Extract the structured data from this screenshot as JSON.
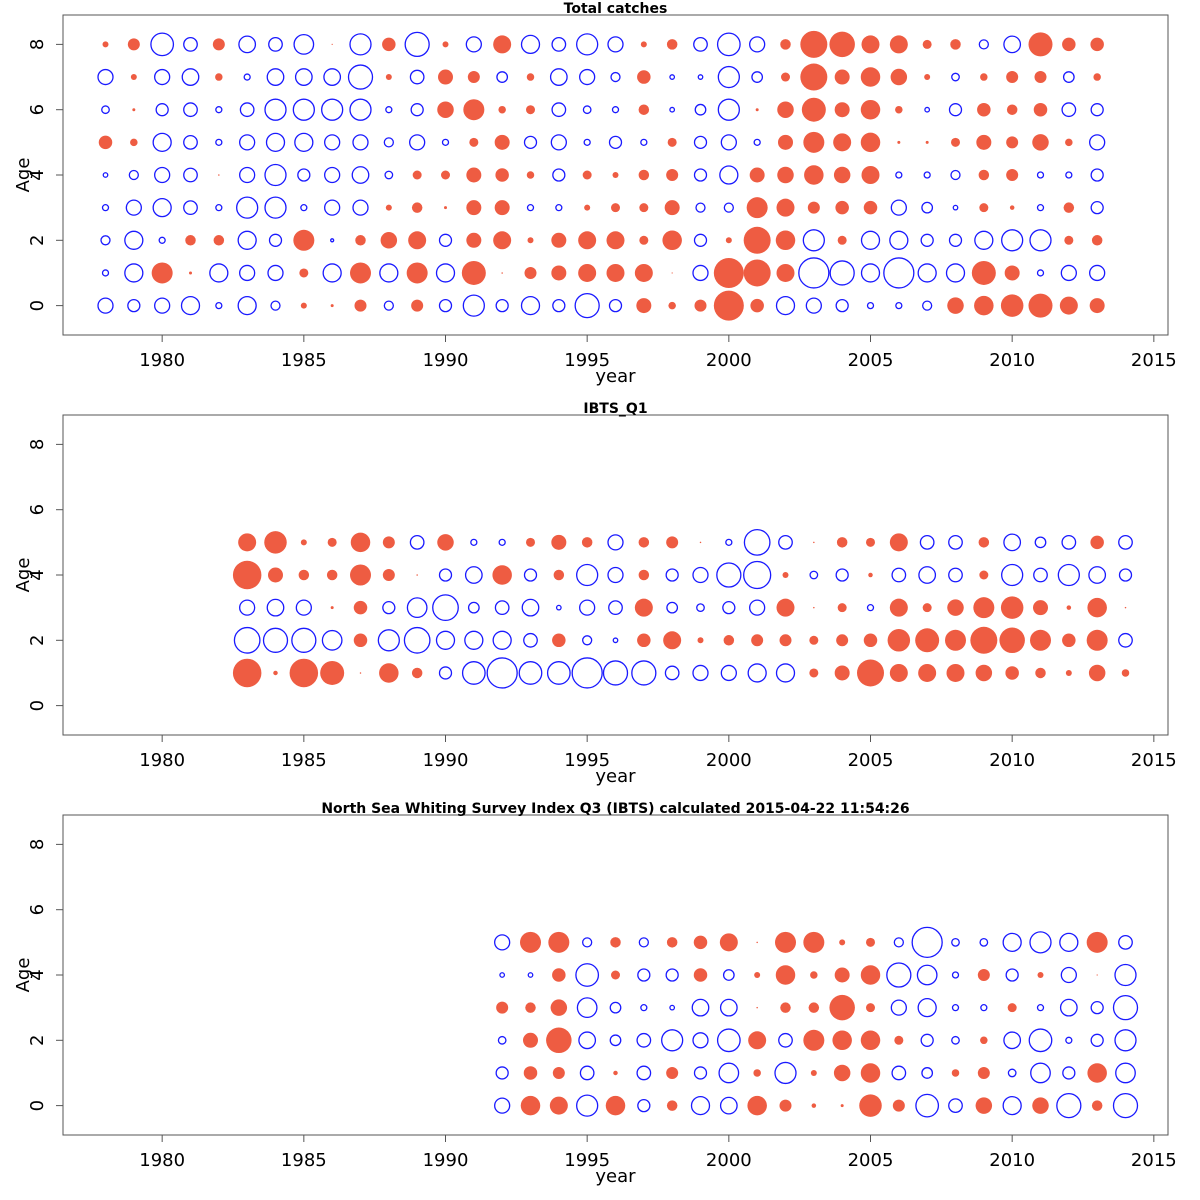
{
  "chart_data": [
    {
      "type": "scatter",
      "subtype": "bubble",
      "title": "Total catches",
      "xlabel": "year",
      "ylabel": "Age",
      "xlim": [
        1976.5,
        2015.5
      ],
      "ylim": [
        -0.9,
        8.9
      ],
      "xticks": [
        "1980",
        "1985",
        "1990",
        "1995",
        "2000",
        "2005",
        "2010",
        "2015"
      ],
      "yticks": [
        "0",
        "2",
        "4",
        "6",
        "8"
      ],
      "encoding": "signed residual; positive = filled red, negative = open blue; magnitude proportional to bubble radius",
      "years": [
        1978,
        1979,
        1980,
        1981,
        1982,
        1983,
        1984,
        1985,
        1986,
        1987,
        1988,
        1989,
        1990,
        1991,
        1992,
        1993,
        1994,
        1995,
        1996,
        1997,
        1998,
        1999,
        2000,
        2001,
        2002,
        2003,
        2004,
        2005,
        2006,
        2007,
        2008,
        2009,
        2010,
        2011,
        2012,
        2013
      ],
      "ages": [
        0,
        1,
        2,
        3,
        4,
        5,
        6,
        7,
        8
      ],
      "series": [
        {
          "name": "age 0",
          "values": [
            -0.5,
            -0.4,
            -0.5,
            -0.6,
            -0.2,
            -0.6,
            -0.3,
            0.2,
            0.1,
            0.4,
            -0.3,
            0.4,
            -0.4,
            -0.7,
            -0.4,
            -0.6,
            -0.4,
            -0.8,
            -0.4,
            0.5,
            0.25,
            0.4,
            1.0,
            0.45,
            -0.6,
            -0.5,
            -0.4,
            -0.2,
            -0.2,
            -0.3,
            0.55,
            0.65,
            0.75,
            0.8,
            0.6,
            0.5
          ]
        },
        {
          "name": "age 1",
          "values": [
            -0.2,
            -0.6,
            0.7,
            0.1,
            -0.6,
            -0.5,
            -0.5,
            0.3,
            -0.6,
            0.7,
            -0.6,
            0.7,
            -0.6,
            0.8,
            0.05,
            0.4,
            0.5,
            0.6,
            0.6,
            0.6,
            0.02,
            -0.5,
            1.0,
            0.9,
            0.6,
            -1.0,
            -0.8,
            -0.6,
            -1.0,
            -0.6,
            -0.6,
            0.8,
            0.5,
            -0.2,
            -0.5,
            -0.5
          ]
        },
        {
          "name": "age 2",
          "values": [
            -0.3,
            -0.6,
            -0.2,
            0.35,
            0.35,
            -0.6,
            -0.4,
            0.7,
            -0.1,
            0.35,
            0.55,
            0.6,
            -0.4,
            0.5,
            0.6,
            0.2,
            0.5,
            0.6,
            0.6,
            0.3,
            0.65,
            -0.4,
            0.2,
            0.9,
            0.65,
            -0.7,
            0.3,
            -0.6,
            -0.6,
            -0.4,
            -0.4,
            -0.6,
            -0.7,
            -0.7,
            0.3,
            0.35
          ]
        },
        {
          "name": "age 3",
          "values": [
            -0.2,
            -0.5,
            -0.6,
            -0.45,
            -0.2,
            -0.7,
            -0.7,
            -0.2,
            -0.5,
            -0.5,
            0.2,
            0.35,
            0.1,
            0.5,
            0.5,
            -0.2,
            -0.2,
            0.2,
            0.3,
            0.3,
            0.5,
            -0.3,
            -0.3,
            0.7,
            0.6,
            0.4,
            0.45,
            0.45,
            -0.5,
            -0.35,
            -0.15,
            0.3,
            0.15,
            -0.2,
            0.35,
            -0.4
          ]
        },
        {
          "name": "age 4",
          "values": [
            -0.15,
            -0.3,
            -0.5,
            -0.45,
            0.05,
            -0.5,
            -0.7,
            -0.4,
            -0.5,
            -0.55,
            -0.25,
            0.3,
            0.3,
            0.5,
            0.45,
            0.25,
            -0.4,
            0.3,
            0.2,
            0.35,
            0.4,
            -0.4,
            -0.6,
            0.5,
            0.55,
            0.65,
            0.55,
            0.6,
            -0.2,
            -0.2,
            -0.3,
            0.35,
            0.4,
            -0.2,
            -0.2,
            -0.4
          ]
        },
        {
          "name": "age 5",
          "values": [
            0.45,
            0.25,
            -0.6,
            -0.45,
            -0.2,
            -0.5,
            -0.6,
            -0.6,
            -0.5,
            -0.5,
            -0.3,
            -0.5,
            -0.2,
            0.3,
            0.5,
            -0.4,
            -0.5,
            -0.2,
            -0.4,
            -0.2,
            0.3,
            -0.4,
            -0.5,
            -0.2,
            0.5,
            0.7,
            0.6,
            0.65,
            0.1,
            0.1,
            0.3,
            0.5,
            0.4,
            0.55,
            0.25,
            -0.5
          ]
        },
        {
          "name": "age 6",
          "values": [
            -0.25,
            0.1,
            -0.4,
            -0.45,
            -0.2,
            -0.45,
            -0.7,
            -0.7,
            -0.7,
            -0.7,
            -0.2,
            -0.4,
            0.55,
            0.7,
            0.25,
            0.3,
            -0.45,
            -0.25,
            -0.2,
            0.35,
            -0.15,
            -0.35,
            -0.7,
            0.1,
            0.55,
            0.8,
            0.5,
            0.65,
            0.25,
            -0.15,
            -0.4,
            0.45,
            0.35,
            0.45,
            -0.45,
            -0.4
          ]
        },
        {
          "name": "age 7",
          "values": [
            -0.5,
            0.2,
            -0.5,
            -0.55,
            0.25,
            -0.2,
            -0.55,
            -0.55,
            -0.55,
            -0.8,
            0.2,
            -0.45,
            0.5,
            0.4,
            -0.35,
            0.25,
            -0.55,
            -0.5,
            -0.3,
            0.45,
            -0.15,
            -0.15,
            -0.7,
            -0.35,
            0.3,
            0.9,
            0.5,
            0.65,
            0.55,
            0.2,
            -0.25,
            0.25,
            0.4,
            0.4,
            -0.35,
            0.25
          ]
        },
        {
          "name": "age 8",
          "values": [
            0.2,
            0.4,
            -0.75,
            -0.45,
            0.4,
            -0.55,
            -0.45,
            -0.65,
            0.02,
            -0.7,
            0.45,
            -0.8,
            0.2,
            -0.5,
            0.6,
            -0.6,
            -0.45,
            -0.7,
            -0.5,
            0.2,
            0.35,
            -0.45,
            -0.75,
            -0.5,
            0.35,
            0.9,
            0.85,
            0.6,
            0.6,
            0.3,
            0.35,
            -0.3,
            -0.55,
            0.8,
            0.45,
            0.45
          ]
        }
      ]
    },
    {
      "type": "scatter",
      "subtype": "bubble",
      "title": "IBTS_Q1",
      "xlabel": "year",
      "ylabel": "Age",
      "xlim": [
        1976.5,
        2015.5
      ],
      "ylim": [
        -0.9,
        8.9
      ],
      "xticks": [
        "1980",
        "1985",
        "1990",
        "1995",
        "2000",
        "2005",
        "2010",
        "2015"
      ],
      "yticks": [
        "0",
        "2",
        "4",
        "6",
        "8"
      ],
      "encoding": "signed residual; positive = filled red, negative = open blue; magnitude proportional to bubble radius",
      "years": [
        1983,
        1984,
        1985,
        1986,
        1987,
        1988,
        1989,
        1990,
        1991,
        1992,
        1993,
        1994,
        1995,
        1996,
        1997,
        1998,
        1999,
        2000,
        2001,
        2002,
        2003,
        2004,
        2005,
        2006,
        2007,
        2008,
        2009,
        2010,
        2011,
        2012,
        2013,
        2014
      ],
      "ages": [
        1,
        2,
        3,
        4,
        5
      ],
      "series": [
        {
          "name": "age 1",
          "values": [
            0.95,
            0.15,
            0.95,
            0.8,
            0.05,
            0.65,
            0.35,
            -0.4,
            -0.75,
            -1.0,
            -0.75,
            -0.75,
            -1.0,
            -0.8,
            -0.8,
            -0.45,
            -0.5,
            -0.5,
            -0.6,
            -0.6,
            0.3,
            0.5,
            0.9,
            0.6,
            0.6,
            0.6,
            0.55,
            0.45,
            0.35,
            0.2,
            0.55,
            0.25
          ]
        },
        {
          "name": "age 2",
          "values": [
            -0.85,
            -0.8,
            -0.8,
            -0.65,
            0.45,
            -0.7,
            -0.85,
            -0.6,
            -0.6,
            -0.6,
            -0.45,
            0.45,
            -0.3,
            -0.15,
            0.45,
            0.6,
            0.2,
            0.35,
            0.4,
            0.4,
            0.3,
            0.4,
            0.45,
            0.75,
            0.8,
            0.7,
            0.9,
            0.85,
            0.7,
            0.45,
            0.7,
            -0.45
          ]
        },
        {
          "name": "age 3",
          "values": [
            -0.5,
            -0.55,
            -0.5,
            0.1,
            0.45,
            -0.4,
            -0.65,
            -0.85,
            -0.35,
            -0.45,
            -0.55,
            -0.15,
            -0.5,
            -0.45,
            0.6,
            -0.35,
            -0.25,
            -0.4,
            -0.5,
            0.6,
            0.05,
            0.3,
            -0.2,
            0.6,
            0.3,
            0.55,
            0.7,
            0.75,
            0.5,
            0.15,
            0.65,
            0.05
          ]
        },
        {
          "name": "age 4",
          "values": [
            0.95,
            0.5,
            0.35,
            0.35,
            0.7,
            0.4,
            0.05,
            -0.4,
            -0.55,
            0.65,
            -0.4,
            0.35,
            -0.7,
            -0.5,
            0.35,
            -0.4,
            -0.5,
            -0.8,
            -0.9,
            0.2,
            -0.25,
            -0.4,
            0.15,
            -0.45,
            -0.55,
            -0.45,
            0.3,
            -0.7,
            -0.45,
            -0.7,
            -0.55,
            -0.4
          ]
        },
        {
          "name": "age 5",
          "values": [
            0.6,
            0.75,
            0.2,
            0.3,
            0.65,
            0.4,
            -0.45,
            0.55,
            -0.2,
            -0.2,
            0.3,
            0.5,
            0.35,
            -0.5,
            0.35,
            0.4,
            0.05,
            -0.2,
            -0.85,
            -0.45,
            0.05,
            0.35,
            0.3,
            0.6,
            -0.45,
            -0.45,
            0.35,
            -0.55,
            -0.35,
            -0.45,
            0.45,
            -0.45
          ]
        }
      ]
    },
    {
      "type": "scatter",
      "subtype": "bubble",
      "title": "North Sea Whiting Survey Index Q3 (IBTS) calculated 2015-04-22 11:54:26",
      "xlabel": "year",
      "ylabel": "Age",
      "xlim": [
        1976.5,
        2015.5
      ],
      "ylim": [
        -0.9,
        8.9
      ],
      "xticks": [
        "1980",
        "1985",
        "1990",
        "1995",
        "2000",
        "2005",
        "2010",
        "2015"
      ],
      "yticks": [
        "0",
        "2",
        "4",
        "6",
        "8"
      ],
      "encoding": "signed residual; positive = filled red, negative = open blue; magnitude proportional to bubble radius",
      "years": [
        1992,
        1993,
        1994,
        1995,
        1996,
        1997,
        1998,
        1999,
        2000,
        2001,
        2002,
        2003,
        2004,
        2005,
        2006,
        2007,
        2008,
        2009,
        2010,
        2011,
        2012,
        2013,
        2014
      ],
      "ages": [
        0,
        1,
        2,
        3,
        4,
        5
      ],
      "series": [
        {
          "name": "age 0",
          "values": [
            -0.5,
            0.65,
            0.6,
            -0.7,
            0.65,
            -0.4,
            0.35,
            -0.6,
            -0.55,
            0.65,
            0.4,
            0.15,
            0.1,
            0.75,
            0.4,
            -0.75,
            -0.45,
            0.55,
            -0.6,
            0.55,
            -0.8,
            0.35,
            -0.8
          ]
        },
        {
          "name": "age 1",
          "values": [
            -0.4,
            0.45,
            0.4,
            -0.45,
            0.15,
            -0.45,
            0.4,
            -0.4,
            -0.65,
            0.25,
            -0.7,
            0.2,
            0.55,
            0.65,
            -0.45,
            -0.35,
            0.25,
            0.4,
            -0.25,
            -0.65,
            -0.4,
            0.65,
            -0.65
          ]
        },
        {
          "name": "age 2",
          "values": [
            -0.25,
            0.5,
            0.85,
            -0.55,
            -0.35,
            -0.45,
            -0.7,
            -0.5,
            -0.75,
            0.6,
            -0.45,
            0.7,
            0.65,
            0.65,
            0.3,
            -0.4,
            -0.25,
            0.25,
            -0.55,
            -0.75,
            -0.2,
            -0.4,
            -0.7
          ]
        },
        {
          "name": "age 3",
          "values": [
            0.4,
            0.35,
            0.55,
            -0.65,
            -0.35,
            -0.2,
            -0.15,
            -0.55,
            -0.55,
            0.05,
            0.35,
            0.35,
            0.85,
            0.3,
            -0.5,
            -0.6,
            -0.2,
            -0.2,
            0.3,
            -0.2,
            -0.55,
            -0.4,
            -0.8
          ]
        },
        {
          "name": "age 4",
          "values": [
            -0.15,
            -0.15,
            0.45,
            -0.75,
            0.3,
            -0.4,
            -0.4,
            0.45,
            -0.35,
            0.2,
            0.65,
            0.25,
            0.5,
            0.65,
            -0.8,
            -0.65,
            -0.2,
            0.4,
            -0.4,
            0.2,
            -0.5,
            0.02,
            -0.7
          ]
        },
        {
          "name": "age 5",
          "values": [
            -0.5,
            0.7,
            0.7,
            -0.3,
            0.35,
            -0.3,
            0.35,
            0.45,
            0.6,
            0.05,
            0.7,
            0.7,
            0.2,
            0.3,
            -0.3,
            -1.0,
            -0.25,
            -0.25,
            -0.6,
            -0.7,
            -0.6,
            0.7,
            -0.45
          ]
        }
      ]
    }
  ]
}
